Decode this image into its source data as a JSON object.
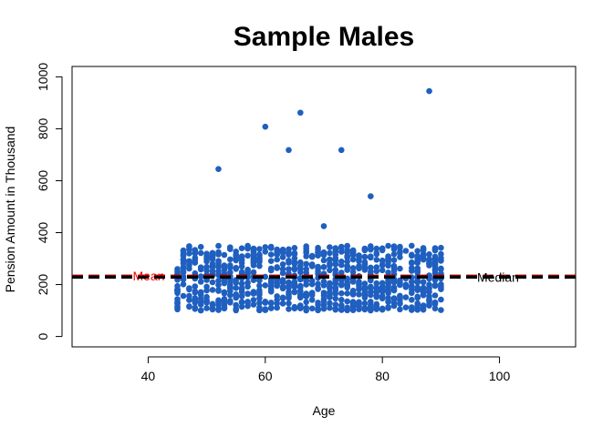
{
  "chart_data": {
    "type": "scatter",
    "title": "Sample Males",
    "xlabel": "Age",
    "ylabel": "Pension Amount in Thousand",
    "xlim": [
      27,
      113
    ],
    "ylim": [
      -40,
      1040
    ],
    "x_ticks": [
      40,
      60,
      80,
      100
    ],
    "y_ticks": [
      0,
      200,
      400,
      600,
      800,
      1000
    ],
    "grid": false,
    "point_color": "#1f5fbf",
    "outliers": [
      {
        "x": 52,
        "y": 645
      },
      {
        "x": 60,
        "y": 808
      },
      {
        "x": 64,
        "y": 718
      },
      {
        "x": 66,
        "y": 862
      },
      {
        "x": 70,
        "y": 425
      },
      {
        "x": 73,
        "y": 718
      },
      {
        "x": 78,
        "y": 540
      },
      {
        "x": 88,
        "y": 945
      }
    ],
    "cluster": {
      "x_range": [
        45,
        90
      ],
      "y_range": [
        100,
        350
      ],
      "approx_points": 900
    },
    "reference_lines": [
      {
        "label": "Mean",
        "value": 233,
        "color": "#8b0000",
        "style": "dashed",
        "label_color": "#ff0000"
      },
      {
        "label": "Median",
        "value": 228,
        "color": "#000000",
        "style": "dashed",
        "label_color": "#000000"
      }
    ]
  }
}
